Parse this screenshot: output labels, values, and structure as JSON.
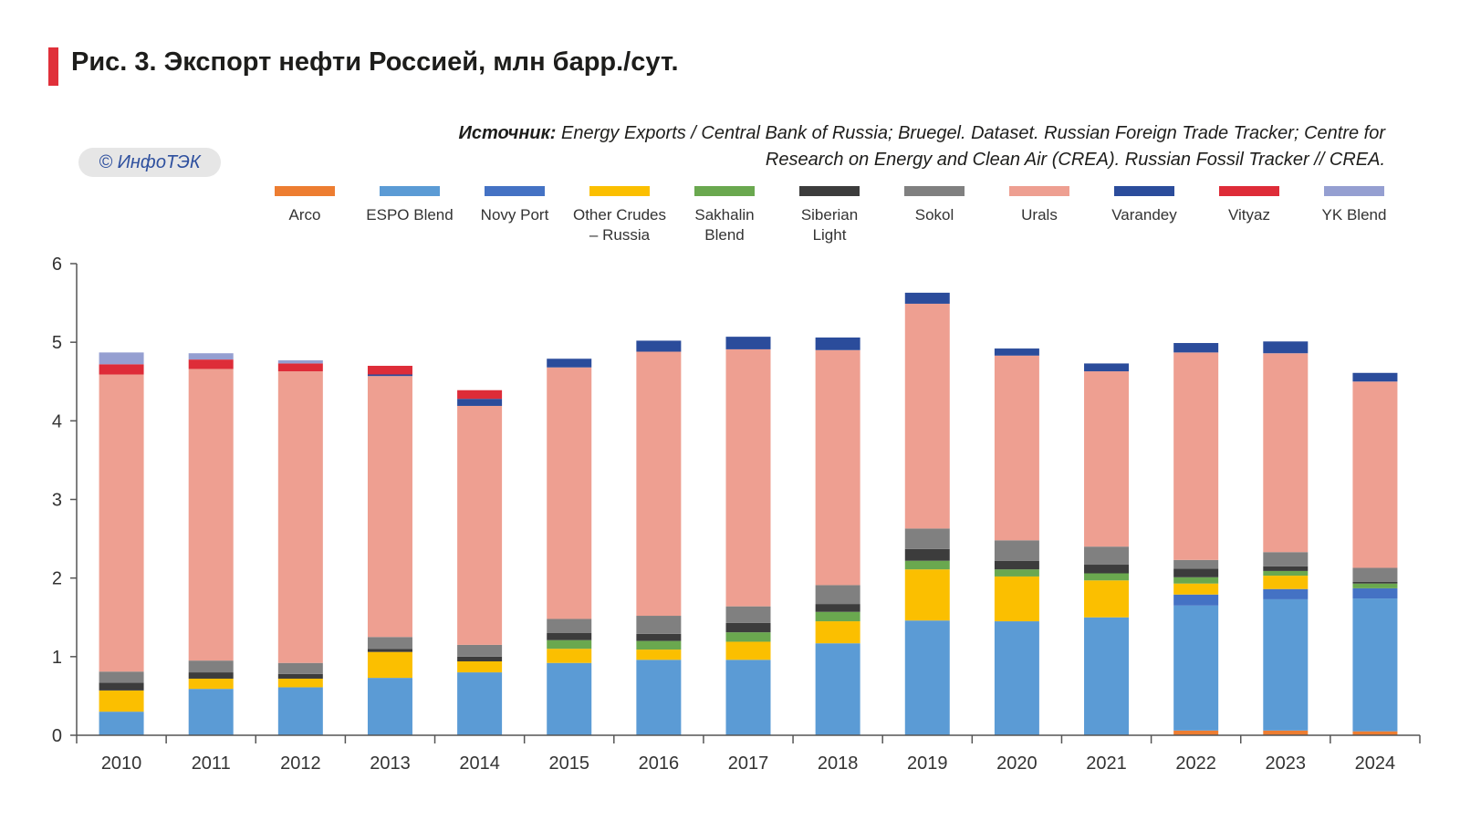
{
  "title": "Рис. 3. Экспорт нефти Россией, млн барр./сут.",
  "source_label": "Источник:",
  "source_text_line1": "Energy Exports / Central Bank of Russia; Bruegel. Dataset. Russian Foreign Trade Tracker; Centre for",
  "source_text_line2": "Research on Energy and Clean Air (CREA). Russian Fossil Tracker // CREA.",
  "badge": "© ИнфоТЭК",
  "chart_data": {
    "type": "bar",
    "stacked": true,
    "title": "Рис. 3. Экспорт нефти Россией, млн барр./сут.",
    "xlabel": "",
    "ylabel": "",
    "ylim": [
      0,
      6
    ],
    "yticks": [
      0,
      1,
      2,
      3,
      4,
      5,
      6
    ],
    "grid": false,
    "legend_position": "top",
    "categories": [
      "2010",
      "2011",
      "2012",
      "2013",
      "2014",
      "2015",
      "2016",
      "2017",
      "2018",
      "2019",
      "2020",
      "2021",
      "2022",
      "2023",
      "2024"
    ],
    "series": [
      {
        "name": "Arco",
        "color": "#ed7d31",
        "values": [
          0,
          0,
          0,
          0,
          0,
          0,
          0,
          0,
          0,
          0,
          0,
          0,
          0.06,
          0.06,
          0.05
        ]
      },
      {
        "name": "ESPO Blend",
        "color": "#5b9bd5",
        "values": [
          0.3,
          0.59,
          0.61,
          0.73,
          0.8,
          0.92,
          0.96,
          0.96,
          1.17,
          1.46,
          1.45,
          1.5,
          1.59,
          1.67,
          1.69
        ]
      },
      {
        "name": "Novy Port",
        "color": "#4472c4",
        "values": [
          0,
          0,
          0,
          0,
          0,
          0,
          0,
          0,
          0,
          0,
          0,
          0,
          0.14,
          0.13,
          0.13
        ]
      },
      {
        "name": "Other Crudes – Russia",
        "color": "#fbbf00",
        "values": [
          0.27,
          0.13,
          0.11,
          0.33,
          0.14,
          0.18,
          0.13,
          0.23,
          0.28,
          0.65,
          0.57,
          0.47,
          0.14,
          0.17,
          0
        ]
      },
      {
        "name": "Sakhalin Blend",
        "color": "#6aa84f",
        "values": [
          0,
          0,
          0,
          0,
          0,
          0.11,
          0.11,
          0.12,
          0.12,
          0.11,
          0.09,
          0.09,
          0.08,
          0.06,
          0.06
        ]
      },
      {
        "name": "Siberian Light",
        "color": "#3c3c3c",
        "values": [
          0.1,
          0.08,
          0.06,
          0.04,
          0.06,
          0.09,
          0.09,
          0.12,
          0.1,
          0.15,
          0.11,
          0.11,
          0.11,
          0.06,
          0.02
        ]
      },
      {
        "name": "Sokol",
        "color": "#808080",
        "values": [
          0.14,
          0.15,
          0.14,
          0.15,
          0.15,
          0.18,
          0.23,
          0.21,
          0.24,
          0.26,
          0.26,
          0.23,
          0.11,
          0.18,
          0.18
        ]
      },
      {
        "name": "Urals",
        "color": "#ee9f91",
        "values": [
          3.78,
          3.71,
          3.71,
          3.32,
          3.04,
          3.2,
          3.36,
          3.27,
          2.99,
          2.86,
          2.35,
          2.23,
          2.64,
          2.53,
          2.37
        ]
      },
      {
        "name": "Varandey",
        "color": "#2b4c9b",
        "values": [
          0,
          0,
          0,
          0.02,
          0.09,
          0.11,
          0.14,
          0.16,
          0.16,
          0.14,
          0.09,
          0.1,
          0.12,
          0.15,
          0.11
        ]
      },
      {
        "name": "Vityaz",
        "color": "#de2c38",
        "values": [
          0.13,
          0.12,
          0.1,
          0.11,
          0.11,
          0,
          0,
          0,
          0,
          0,
          0,
          0,
          0,
          0,
          0
        ]
      },
      {
        "name": "YK Blend",
        "color": "#959fd1",
        "values": [
          0.15,
          0.08,
          0.04,
          0,
          0,
          0,
          0,
          0,
          0,
          0,
          0,
          0,
          0,
          0,
          0
        ]
      }
    ]
  },
  "legend": [
    {
      "label": "Arco",
      "color": "#ed7d31"
    },
    {
      "label": "ESPO Blend",
      "color": "#5b9bd5"
    },
    {
      "label": "Novy Port",
      "color": "#4472c4"
    },
    {
      "label": "Other Crudes\n– Russia",
      "color": "#fbbf00"
    },
    {
      "label": "Sakhalin\nBlend",
      "color": "#6aa84f"
    },
    {
      "label": "Siberian\nLight",
      "color": "#3c3c3c"
    },
    {
      "label": "Sokol",
      "color": "#808080"
    },
    {
      "label": "Urals",
      "color": "#ee9f91"
    },
    {
      "label": "Varandey",
      "color": "#2b4c9b"
    },
    {
      "label": "Vityaz",
      "color": "#de2c38"
    },
    {
      "label": "YK Blend",
      "color": "#959fd1"
    }
  ],
  "accent_color": "#e0303a"
}
